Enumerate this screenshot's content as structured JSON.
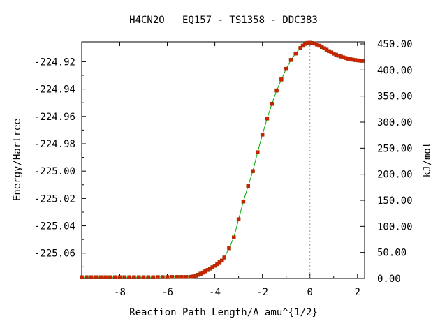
{
  "chart_data": {
    "type": "line",
    "title": "H4CN2O   EQ157 - TS1358 - DDC383",
    "xlabel": "Reaction Path Length/A amu^{1/2}",
    "ylabel": "Energy/Hartree",
    "y2label": "kJ/mol",
    "xlim": [
      -9.6,
      2.3
    ],
    "ylim": [
      -225.0785,
      -224.9055
    ],
    "y2lim": [
      0,
      454
    ],
    "xticks": [
      -8,
      -6,
      -4,
      -2,
      0,
      2
    ],
    "xtick_labels": [
      "-8",
      "-6",
      "-4",
      "-2",
      "0",
      "2"
    ],
    "yticks": [
      -224.92,
      -224.94,
      -224.96,
      -224.98,
      -225.0,
      -225.02,
      -225.04,
      -225.06
    ],
    "ytick_labels": [
      "-224.92",
      "-224.94",
      "-224.96",
      "-224.98",
      "-225.00",
      "-225.02",
      "-225.04",
      "-225.06"
    ],
    "y2ticks": [
      0,
      50,
      100,
      150,
      200,
      250,
      300,
      350,
      400,
      450
    ],
    "y2tick_labels": [
      "0.00",
      "50.00",
      "100.00",
      "150.00",
      "200.00",
      "250.00",
      "300.00",
      "350.00",
      "400.00",
      "450.00"
    ],
    "ts_x": 0,
    "grid": false,
    "colors": {
      "line": "#00aa00",
      "marker": "#cc2200",
      "marker_edge": "#993300",
      "ts_line": "#999999"
    },
    "series": [
      {
        "x": [
          -9.6,
          -9.4,
          -9.2,
          -9.0,
          -8.8,
          -8.6,
          -8.4,
          -8.2,
          -8.0,
          -7.8,
          -7.6,
          -7.4,
          -7.2,
          -7.0,
          -6.8,
          -6.6,
          -6.4,
          -6.2,
          -6.0,
          -5.8,
          -5.6,
          -5.4,
          -5.2,
          -5.0,
          -4.9,
          -4.8,
          -4.7,
          -4.6,
          -4.5,
          -4.4,
          -4.3,
          -4.2,
          -4.1,
          -4.0,
          -3.9,
          -3.8,
          -3.7,
          -3.6,
          -3.4,
          -3.2,
          -3.0,
          -2.8,
          -2.6,
          -2.4,
          -2.2,
          -2.0,
          -1.8,
          -1.6,
          -1.4,
          -1.2,
          -1.0,
          -0.8,
          -0.6,
          -0.4,
          -0.3,
          -0.2,
          -0.1,
          0.0,
          0.1,
          0.2,
          0.3,
          0.4,
          0.5,
          0.6,
          0.7,
          0.8,
          0.9,
          1.0,
          1.1,
          1.2,
          1.3,
          1.4,
          1.5,
          1.6,
          1.7,
          1.8,
          1.9,
          2.0,
          2.1,
          2.2
        ],
        "y": [
          -225.0776,
          -225.0776,
          -225.0776,
          -225.0776,
          -225.0776,
          -225.0776,
          -225.0776,
          -225.0776,
          -225.0776,
          -225.0776,
          -225.0776,
          -225.0776,
          -225.0776,
          -225.0776,
          -225.0776,
          -225.0776,
          -225.0775,
          -225.0775,
          -225.0775,
          -225.0774,
          -225.0774,
          -225.0774,
          -225.0774,
          -225.0773,
          -225.077,
          -225.0765,
          -225.0758,
          -225.075,
          -225.0742,
          -225.0733,
          -225.0723,
          -225.0713,
          -225.0703,
          -225.0692,
          -225.068,
          -225.0667,
          -225.0654,
          -225.0632,
          -225.0564,
          -225.0485,
          -225.0352,
          -225.0222,
          -225.0109,
          -225.0,
          -224.9862,
          -224.9733,
          -224.9615,
          -224.9508,
          -224.941,
          -224.933,
          -224.9252,
          -224.9187,
          -224.914,
          -224.91,
          -224.9083,
          -224.907,
          -224.9063,
          -224.9062,
          -224.9064,
          -224.9068,
          -224.9075,
          -224.9083,
          -224.9092,
          -224.9102,
          -224.9112,
          -224.9123,
          -224.9132,
          -224.9141,
          -224.9149,
          -224.9156,
          -224.9162,
          -224.9168,
          -224.9173,
          -224.9178,
          -224.9182,
          -224.9185,
          -224.9188,
          -224.919,
          -224.9192,
          -224.9193
        ]
      }
    ]
  }
}
